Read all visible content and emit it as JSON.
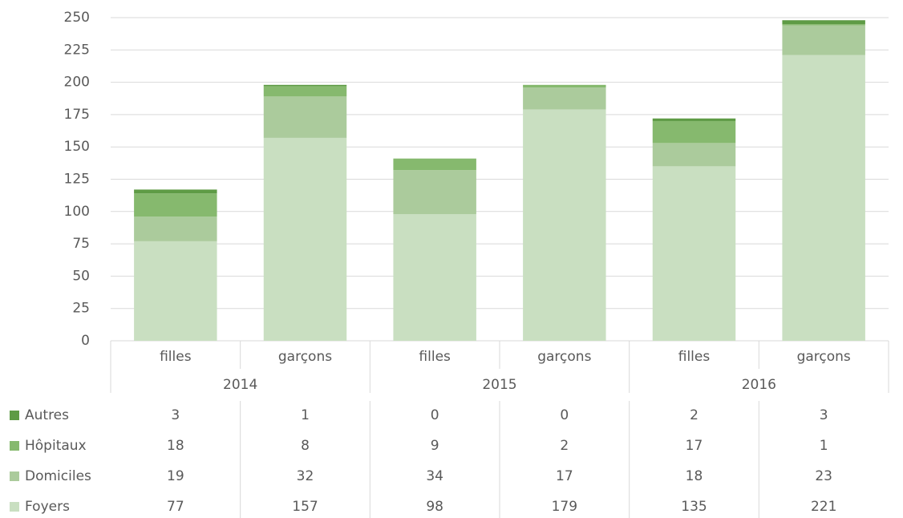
{
  "chart_data": {
    "type": "stacked_bar",
    "categories": [
      "filles",
      "garçons",
      "filles",
      "garçons",
      "filles",
      "garçons"
    ],
    "groups": [
      "2014",
      "2015",
      "2016"
    ],
    "series": [
      {
        "name": "Foyers",
        "color": "#c9dfc1",
        "values": [
          77,
          157,
          98,
          179,
          135,
          221
        ]
      },
      {
        "name": "Domiciles",
        "color": "#abcb9c",
        "values": [
          19,
          32,
          34,
          17,
          18,
          23
        ]
      },
      {
        "name": "Hôpitaux",
        "color": "#86b96e",
        "values": [
          18,
          8,
          9,
          2,
          17,
          1
        ]
      },
      {
        "name": "Autres",
        "color": "#5e9b45",
        "values": [
          3,
          1,
          0,
          0,
          2,
          3
        ]
      }
    ],
    "ylim": [
      0,
      250
    ],
    "yticks": [
      0,
      25,
      50,
      75,
      100,
      125,
      150,
      175,
      200,
      225,
      250
    ],
    "grid": true
  }
}
